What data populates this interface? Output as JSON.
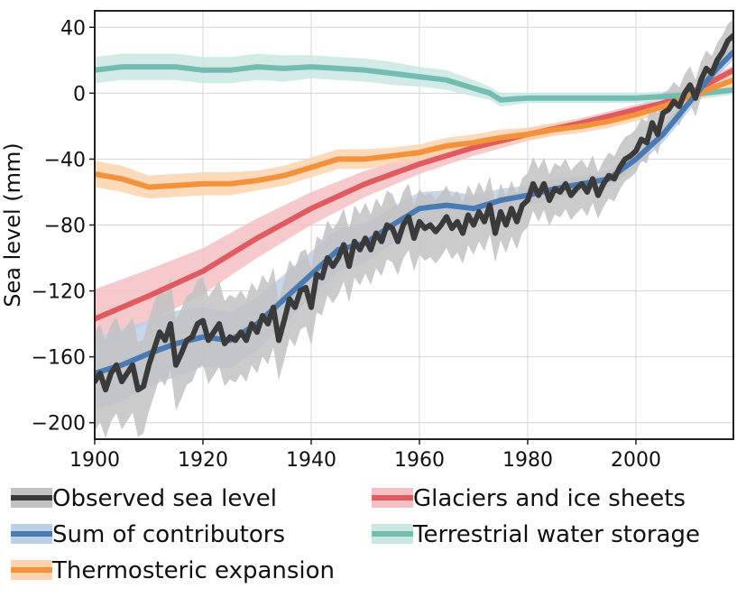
{
  "chart_data": {
    "type": "line",
    "title": "",
    "xlabel": "",
    "ylabel": "Sea level (mm)",
    "xlim": [
      1900,
      2018
    ],
    "ylim": [
      -210,
      50
    ],
    "xticks": [
      1900,
      1920,
      1940,
      1960,
      1980,
      2000
    ],
    "yticks": [
      40,
      0,
      -40,
      -80,
      -120,
      -160,
      -200
    ],
    "ytick_labels": [
      "40",
      "0",
      "−40",
      "−80",
      "−120",
      "−160",
      "−200"
    ],
    "grid": true,
    "legend_placement": "bottom",
    "series": [
      {
        "name": "Glaciers and ice sheets",
        "color": "#e05a5f",
        "band_color": "#f4c0c3",
        "x": [
          1900,
          1910,
          1920,
          1930,
          1940,
          1950,
          1960,
          1970,
          1980,
          1990,
          2000,
          2005,
          2010,
          2018
        ],
        "y": [
          -137,
          -123,
          -108,
          -88,
          -70,
          -55,
          -43,
          -33,
          -25,
          -18,
          -10,
          -6,
          0,
          14
        ],
        "band": [
          18,
          16,
          14,
          12,
          10,
          8,
          6,
          5,
          4,
          3,
          3,
          3,
          3,
          3
        ]
      },
      {
        "name": "Terrestrial water storage",
        "color": "#72bcb1",
        "band_color": "#cbe7e2",
        "x": [
          1900,
          1905,
          1910,
          1915,
          1920,
          1925,
          1930,
          1935,
          1940,
          1945,
          1950,
          1955,
          1960,
          1965,
          1970,
          1973,
          1975,
          1980,
          1990,
          2000,
          2005,
          2010,
          2018
        ],
        "y": [
          14,
          16,
          16,
          16,
          14,
          14,
          16,
          15,
          16,
          15,
          14,
          12,
          10,
          8,
          3,
          0,
          -4,
          -3,
          -3,
          -3,
          -2,
          -1,
          2
        ],
        "band": [
          8,
          8,
          8,
          8,
          8,
          8,
          8,
          8,
          7,
          7,
          7,
          7,
          6,
          6,
          5,
          4,
          4,
          3,
          3,
          3,
          3,
          3,
          3
        ]
      },
      {
        "name": "Thermosteric expansion",
        "color": "#f3923a",
        "band_color": "#fbd3ae",
        "x": [
          1900,
          1905,
          1910,
          1915,
          1920,
          1925,
          1930,
          1935,
          1940,
          1945,
          1950,
          1955,
          1960,
          1965,
          1970,
          1975,
          1980,
          1985,
          1990,
          1995,
          2000,
          2005,
          2010,
          2018
        ],
        "y": [
          -49,
          -52,
          -57,
          -56,
          -55,
          -55,
          -53,
          -50,
          -45,
          -40,
          -40,
          -38,
          -36,
          -32,
          -30,
          -27,
          -25,
          -22,
          -20,
          -17,
          -13,
          -8,
          -2,
          8
        ],
        "band": [
          8,
          8,
          7,
          7,
          7,
          7,
          6,
          6,
          6,
          6,
          6,
          5,
          5,
          5,
          5,
          5,
          4,
          4,
          4,
          4,
          4,
          4,
          4,
          4
        ]
      },
      {
        "name": "Sum of contributors",
        "color": "#4a7ab3",
        "band_color": "#bcd0e6",
        "x": [
          1900,
          1905,
          1910,
          1915,
          1920,
          1925,
          1930,
          1935,
          1940,
          1945,
          1950,
          1955,
          1960,
          1965,
          1970,
          1975,
          1980,
          1985,
          1990,
          1995,
          2000,
          2005,
          2010,
          2015,
          2018
        ],
        "y": [
          -170,
          -165,
          -158,
          -152,
          -148,
          -150,
          -140,
          -125,
          -110,
          -95,
          -91,
          -80,
          -70,
          -68,
          -70,
          -65,
          -62,
          -58,
          -55,
          -52,
          -40,
          -25,
          -5,
          15,
          25
        ],
        "band": [
          22,
          22,
          20,
          20,
          18,
          17,
          16,
          15,
          14,
          13,
          12,
          11,
          10,
          9,
          8,
          7,
          6,
          6,
          5,
          5,
          5,
          5,
          5,
          5,
          5
        ]
      },
      {
        "name": "Observed sea level",
        "color": "#3a3a3a",
        "band_color": "#c2c2c2",
        "x": [
          1900,
          1901,
          1902,
          1903,
          1904,
          1905,
          1906,
          1907,
          1908,
          1909,
          1910,
          1911,
          1912,
          1913,
          1914,
          1915,
          1916,
          1917,
          1918,
          1919,
          1920,
          1921,
          1922,
          1923,
          1924,
          1925,
          1926,
          1927,
          1928,
          1929,
          1930,
          1931,
          1932,
          1933,
          1934,
          1935,
          1936,
          1937,
          1938,
          1939,
          1940,
          1941,
          1942,
          1943,
          1944,
          1945,
          1946,
          1947,
          1948,
          1949,
          1950,
          1951,
          1952,
          1953,
          1954,
          1955,
          1956,
          1957,
          1958,
          1959,
          1960,
          1961,
          1962,
          1963,
          1964,
          1965,
          1966,
          1967,
          1968,
          1969,
          1970,
          1971,
          1972,
          1973,
          1974,
          1975,
          1976,
          1977,
          1978,
          1979,
          1980,
          1981,
          1982,
          1983,
          1984,
          1985,
          1986,
          1987,
          1988,
          1989,
          1990,
          1991,
          1992,
          1993,
          1994,
          1995,
          1996,
          1997,
          1998,
          1999,
          2000,
          2001,
          2002,
          2003,
          2004,
          2005,
          2006,
          2007,
          2008,
          2009,
          2010,
          2011,
          2012,
          2013,
          2014,
          2015,
          2016,
          2017,
          2018
        ],
        "y": [
          -175,
          -170,
          -180,
          -170,
          -165,
          -175,
          -170,
          -165,
          -180,
          -178,
          -165,
          -155,
          -145,
          -150,
          -140,
          -165,
          -158,
          -150,
          -148,
          -140,
          -138,
          -150,
          -145,
          -140,
          -152,
          -148,
          -150,
          -145,
          -150,
          -140,
          -145,
          -135,
          -140,
          -130,
          -150,
          -138,
          -125,
          -130,
          -120,
          -118,
          -130,
          -110,
          -112,
          -100,
          -105,
          -100,
          -92,
          -105,
          -90,
          -95,
          -88,
          -95,
          -85,
          -90,
          -80,
          -82,
          -90,
          -80,
          -75,
          -88,
          -78,
          -82,
          -80,
          -84,
          -80,
          -75,
          -82,
          -78,
          -85,
          -74,
          -80,
          -72,
          -78,
          -68,
          -85,
          -72,
          -80,
          -70,
          -78,
          -68,
          -65,
          -55,
          -62,
          -55,
          -65,
          -58,
          -60,
          -55,
          -62,
          -58,
          -55,
          -60,
          -52,
          -62,
          -55,
          -50,
          -52,
          -45,
          -40,
          -38,
          -35,
          -28,
          -30,
          -18,
          -25,
          -12,
          -10,
          -5,
          -8,
          0,
          5,
          -3,
          8,
          15,
          12,
          20,
          25,
          32,
          35
        ],
        "band_start": 30,
        "band_end": 10
      }
    ],
    "legend": [
      {
        "label": "Observed sea level",
        "color": "#3a3a3a",
        "band_color": "#c2c2c2"
      },
      {
        "label": "Glaciers and ice sheets",
        "color": "#e05a5f",
        "band_color": "#f4c0c3"
      },
      {
        "label": "Sum of contributors",
        "color": "#4a7ab3",
        "band_color": "#bcd0e6"
      },
      {
        "label": "Terrestrial water storage",
        "color": "#72bcb1",
        "band_color": "#cbe7e2"
      },
      {
        "label": "Thermosteric expansion",
        "color": "#f3923a",
        "band_color": "#fbd3ae"
      }
    ]
  }
}
